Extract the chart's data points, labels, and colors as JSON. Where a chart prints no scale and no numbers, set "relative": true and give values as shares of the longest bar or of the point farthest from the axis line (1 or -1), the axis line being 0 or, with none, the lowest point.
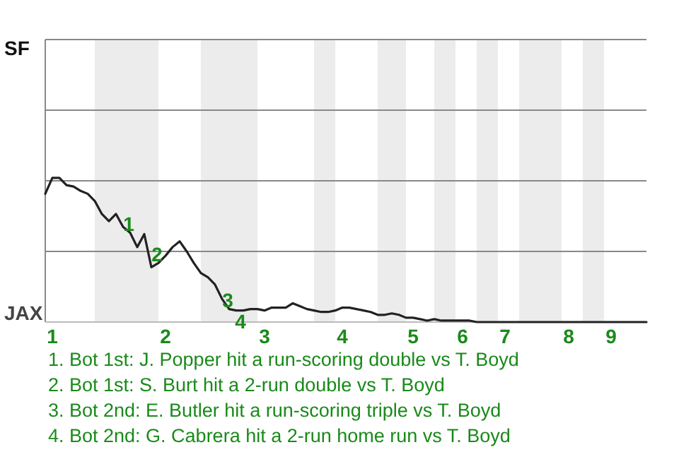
{
  "chart_data": {
    "type": "line",
    "relative": true,
    "categories": [
      null,
      "1",
      null,
      null,
      null,
      null,
      null,
      null,
      null,
      null,
      null,
      null,
      null,
      null,
      null,
      null,
      null,
      "2",
      null,
      null,
      null,
      null,
      null,
      null,
      null,
      null,
      null,
      null,
      null,
      null,
      null,
      "3",
      null,
      null,
      null,
      null,
      null,
      null,
      null,
      null,
      null,
      null,
      "4",
      null,
      null,
      null,
      null,
      null,
      null,
      null,
      null,
      null,
      "5",
      null,
      null,
      null,
      null,
      null,
      null,
      "6",
      null,
      null,
      null,
      null,
      null,
      "7",
      null,
      null,
      null,
      null,
      null,
      null,
      null,
      null,
      "8",
      null,
      null,
      null,
      null,
      null,
      "9",
      null,
      null,
      null,
      null,
      null
    ],
    "series": [
      {
        "color": "#222222",
        "values": [
          0.89,
          1,
          1,
          0.95,
          0.94,
          0.91,
          0.89,
          0.84,
          0.75,
          0.7,
          0.75,
          0.66,
          0.62,
          0.52,
          0.61,
          0.38,
          0.41,
          0.46,
          0.52,
          0.56,
          0.49,
          0.41,
          0.34,
          0.31,
          0.26,
          0.16,
          0.09,
          0.08,
          0.08,
          0.09,
          0.09,
          0.08,
          0.1,
          0.1,
          0.1,
          0.13,
          0.11,
          0.09,
          0.08,
          0.07,
          0.07,
          0.08,
          0.1,
          0.1,
          0.09,
          0.08,
          0.07,
          0.05,
          0.05,
          0.06,
          0.05,
          0.03,
          0.03,
          0.02,
          0.01,
          0.02,
          0.01,
          0.01,
          0.01,
          0.01,
          0.01,
          0,
          0,
          0,
          0,
          0,
          0,
          0,
          0,
          0,
          0,
          0,
          0,
          0,
          0,
          0,
          0,
          0,
          0,
          0,
          0,
          0,
          0,
          0,
          0,
          0
        ]
      }
    ],
    "ref_lines": [
      {
        "axis": "y",
        "value": 0.49,
        "color": "#888888"
      },
      {
        "axis": "y",
        "value": 0.98,
        "color": "#888888"
      },
      {
        "axis": "y",
        "value": 1.47,
        "color": "#888888"
      },
      {
        "axis": "y",
        "value": 1.96,
        "color": "#888888"
      }
    ],
    "annotations": [
      {
        "text": "1",
        "y": 0.62
      },
      {
        "text": "2",
        "y": 0.41
      },
      {
        "text": "3",
        "y": 0.09
      },
      {
        "text": "4",
        "y": 0.08
      },
      "SF",
      "JAX",
      "1. Bot 1st: J. Popper hit a run-scoring double vs T. Boyd",
      "2. Bot 1st: S. Burt hit a 2-run double vs T. Boyd",
      "3. Bot 2nd: E. Butler hit a run-scoring triple vs T. Boyd",
      "4. Bot 2nd: G. Cabrera hit a 2-run home run vs T. Boyd"
    ]
  }
}
